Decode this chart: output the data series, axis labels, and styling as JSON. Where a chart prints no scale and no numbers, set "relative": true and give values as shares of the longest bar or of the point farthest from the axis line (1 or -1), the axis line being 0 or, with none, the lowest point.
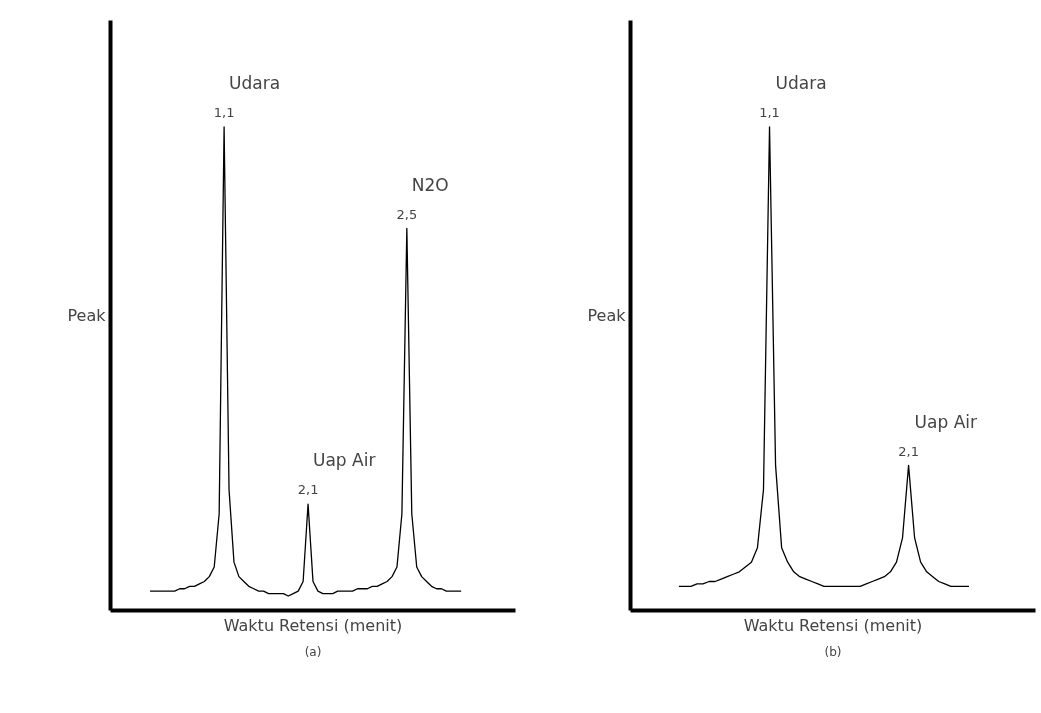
{
  "chart_data": [
    {
      "type": "line",
      "relative": true,
      "xlabel": "Waktu Retensi (menit)",
      "ylabel": "Peak",
      "categories": [
        null,
        null,
        null,
        null,
        null,
        null,
        null,
        null,
        null,
        null,
        null,
        null,
        null,
        null,
        null,
        null,
        null,
        null,
        null,
        null,
        null,
        null,
        null,
        null,
        null,
        null,
        null,
        null,
        null,
        null,
        null,
        null,
        null,
        null,
        null,
        null,
        null,
        null,
        null,
        null,
        null,
        null,
        null,
        null,
        null,
        null,
        null,
        null,
        null,
        null,
        null,
        null,
        null,
        null,
        null,
        null,
        null,
        null,
        null,
        null,
        null,
        null,
        null,
        null
      ],
      "series": [
        {
          "color": "#000000",
          "values": [
            0.04,
            0.04,
            0.04,
            0.04,
            0.04,
            0.04,
            0.045,
            0.045,
            0.05,
            0.05,
            0.055,
            0.06,
            0.07,
            0.09,
            0.2,
            1,
            0.25,
            0.1,
            0.07,
            0.06,
            0.05,
            0.045,
            0.04,
            0.04,
            0.035,
            0.035,
            0.035,
            0.035,
            0.03,
            0.035,
            0.04,
            0.06,
            0.22,
            0.06,
            0.04,
            0.035,
            0.035,
            0.035,
            0.04,
            0.04,
            0.04,
            0.04,
            0.045,
            0.045,
            0.045,
            0.05,
            0.05,
            0.055,
            0.06,
            0.07,
            0.09,
            0.2,
            0.79,
            0.2,
            0.09,
            0.07,
            0.06,
            0.05,
            0.045,
            0.045,
            0.04,
            0.04,
            0.04,
            0.04
          ]
        }
      ],
      "annotations": [
        "1,1",
        "Udara",
        "2,1",
        "Uap Air",
        "2,5",
        "N2O",
        "(a)"
      ]
    },
    {
      "type": "line",
      "relative": true,
      "xlabel": "Waktu Retensi (menit)",
      "ylabel": "Peak",
      "categories": [
        null,
        null,
        null,
        null,
        null,
        null,
        null,
        null,
        null,
        null,
        null,
        null,
        null,
        null,
        null,
        null,
        null,
        null,
        null,
        null,
        null,
        null,
        null,
        null,
        null,
        null,
        null,
        null,
        null,
        null,
        null,
        null,
        null,
        null,
        null,
        null,
        null,
        null,
        null,
        null,
        null,
        null,
        null,
        null,
        null,
        null,
        null,
        null,
        null
      ],
      "series": [
        {
          "color": "#000000",
          "values": [
            0.05,
            0.05,
            0.05,
            0.055,
            0.055,
            0.06,
            0.06,
            0.065,
            0.07,
            0.075,
            0.08,
            0.09,
            0.1,
            0.13,
            0.25,
            1,
            0.3,
            0.13,
            0.1,
            0.08,
            0.07,
            0.065,
            0.06,
            0.055,
            0.05,
            0.05,
            0.05,
            0.05,
            0.05,
            0.05,
            0.05,
            0.055,
            0.06,
            0.065,
            0.07,
            0.08,
            0.1,
            0.15,
            0.3,
            0.15,
            0.1,
            0.08,
            0.07,
            0.06,
            0.055,
            0.05,
            0.05,
            0.05,
            0.05
          ]
        }
      ],
      "annotations": [
        "1,1",
        "Udara",
        "2,1",
        "Uap Air",
        "(b)"
      ]
    }
  ]
}
